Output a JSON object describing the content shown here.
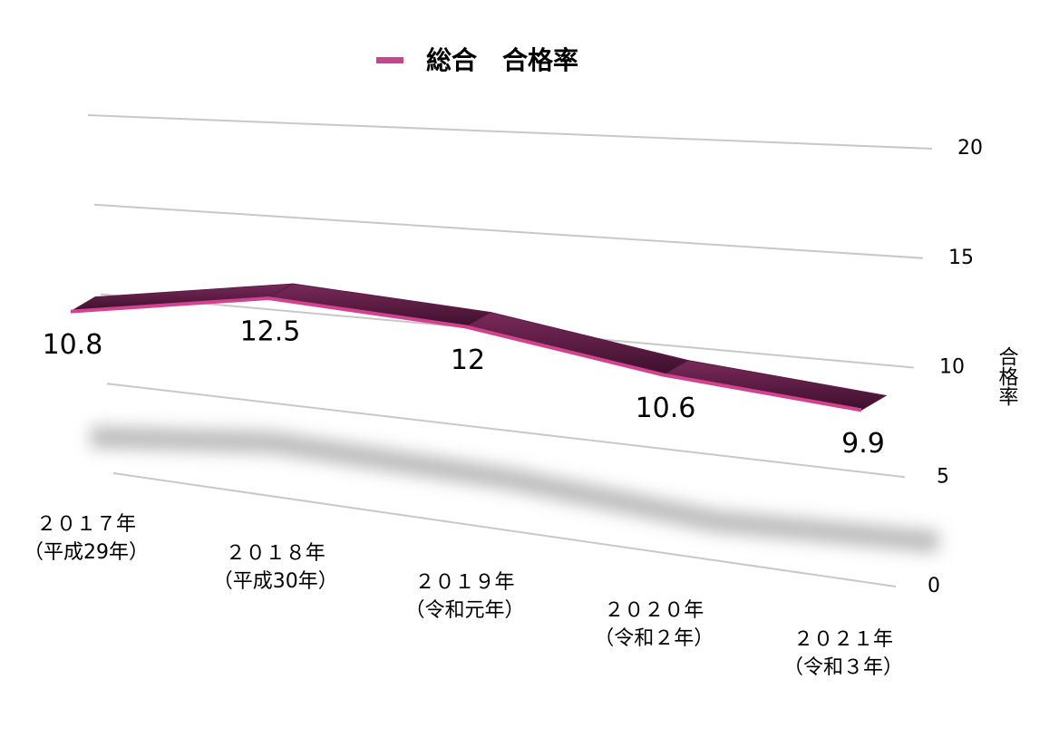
{
  "chart_data": {
    "type": "line",
    "categories": [
      "２０１７年\n（平成29年）",
      "２０１８年\n（平成30年）",
      "２０１９年\n（令和元年）",
      "２０２０年\n（令和２年）",
      "２０２１年\n（令和３年）"
    ],
    "series": [
      {
        "name": "総合　合格率",
        "color": "#d2438f",
        "values": [
          10.8,
          12.5,
          12,
          10.6,
          9.9
        ]
      }
    ],
    "y_label": "合格率",
    "ylim": [
      0,
      20
    ],
    "yticks": [
      0,
      5,
      10,
      15,
      20
    ],
    "grid": true
  }
}
